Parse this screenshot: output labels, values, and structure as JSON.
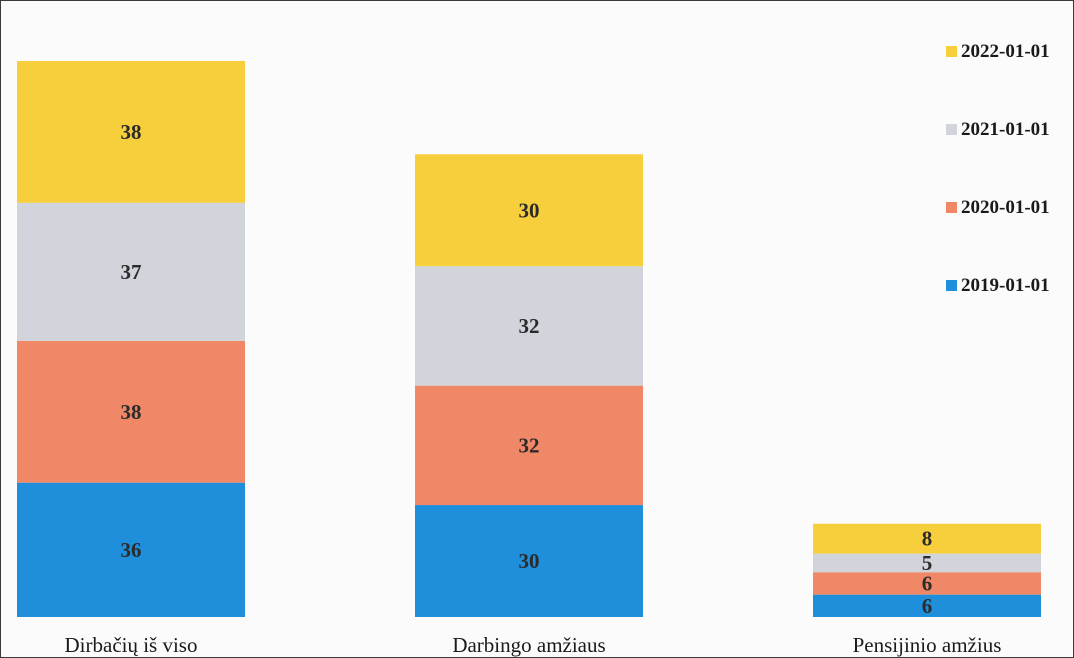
{
  "chart_data": {
    "type": "bar",
    "stacked": true,
    "categories": [
      "Dirbačių iš viso",
      "Darbingo amžiaus",
      "Pensijinio amžius"
    ],
    "series": [
      {
        "name": "2019-01-01",
        "values": [
          36,
          30,
          6
        ],
        "color": "#1f8fdb"
      },
      {
        "name": "2020-01-01",
        "values": [
          38,
          32,
          6
        ],
        "color": "#f08868"
      },
      {
        "name": "2021-01-01",
        "values": [
          37,
          32,
          5
        ],
        "color": "#d2d4dc"
      },
      {
        "name": "2022-01-01",
        "values": [
          38,
          30,
          8
        ],
        "color": "#f7cf3c"
      }
    ],
    "title": "",
    "xlabel": "",
    "ylabel": "",
    "ylim": [
      0,
      149
    ],
    "grid": false,
    "legend_placement": "top-right",
    "legend_order": [
      "2022-01-01",
      "2021-01-01",
      "2020-01-01",
      "2019-01-01"
    ],
    "data_labels": true
  }
}
